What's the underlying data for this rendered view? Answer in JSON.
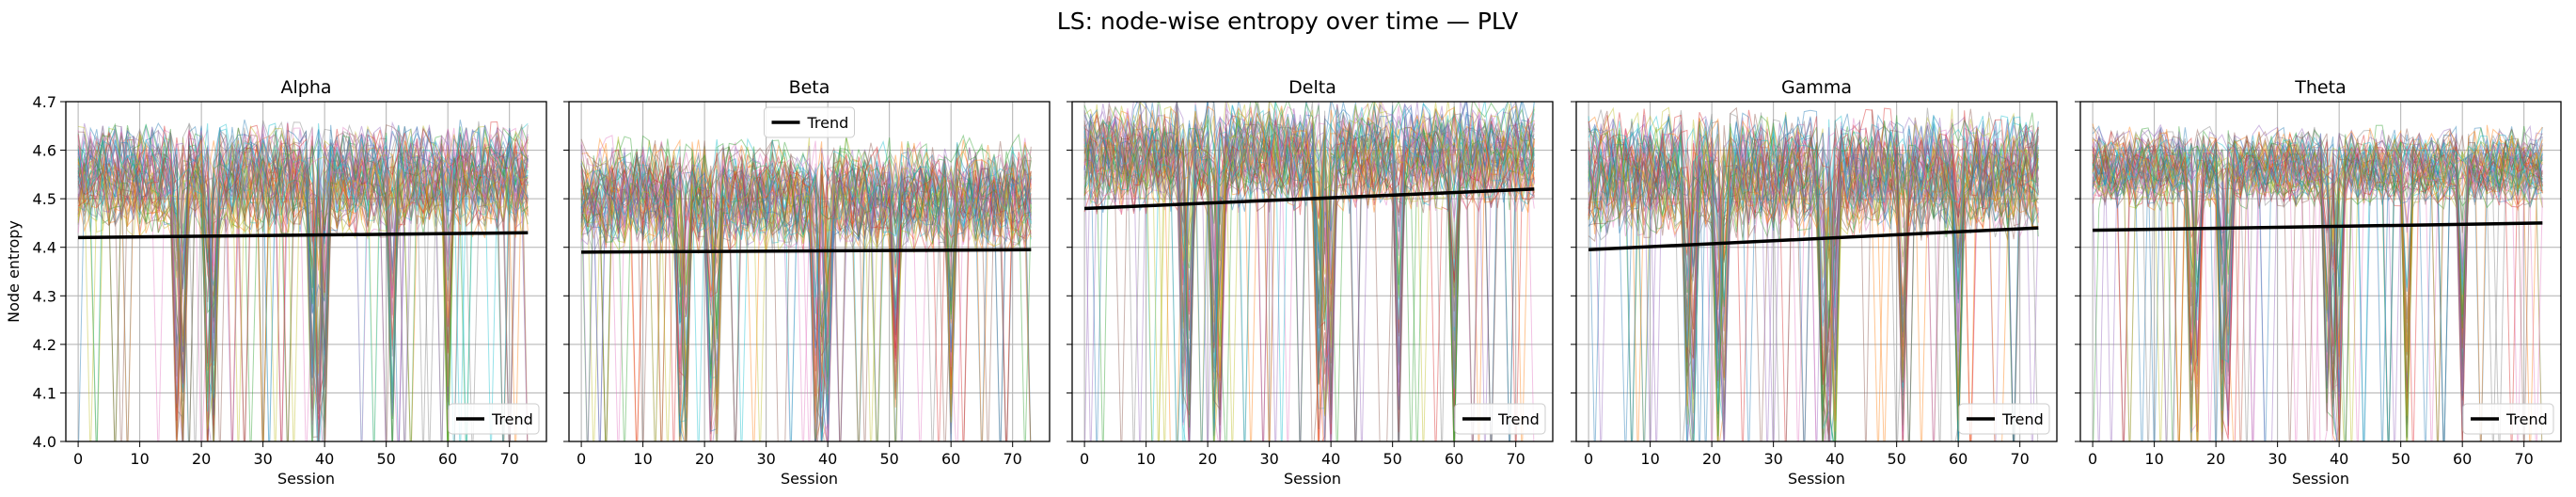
{
  "figure": {
    "title": "LS: node-wise entropy over time — PLV"
  },
  "chart_data": [
    {
      "type": "line",
      "title": "Alpha",
      "xlabel": "Session",
      "ylabel": "Node entropy",
      "xlim": [
        -2,
        76
      ],
      "ylim": [
        4.0,
        4.7
      ],
      "xticks": [
        0,
        10,
        20,
        30,
        40,
        50,
        60,
        70
      ],
      "yticks": [
        4.0,
        4.1,
        4.2,
        4.3,
        4.4,
        4.5,
        4.6,
        4.7
      ],
      "grid": true,
      "legend": {
        "entries": [
          "Trend"
        ],
        "placement": "lower-right"
      },
      "node_series": {
        "count": 60,
        "session_range": [
          0,
          73
        ],
        "typical_range": [
          4.45,
          4.63
        ],
        "dips_at_sessions": [
          16,
          17,
          21,
          22,
          38,
          39,
          40,
          51,
          60
        ]
      },
      "trend": {
        "name": "Trend",
        "x": [
          0,
          73
        ],
        "y": [
          4.42,
          4.43
        ]
      }
    },
    {
      "type": "line",
      "title": "Beta",
      "xlabel": "Session",
      "ylabel": "",
      "xlim": [
        -2,
        76
      ],
      "ylim": [
        4.0,
        4.7
      ],
      "xticks": [
        0,
        10,
        20,
        30,
        40,
        50,
        60,
        70
      ],
      "yticks": [
        4.0,
        4.1,
        4.2,
        4.3,
        4.4,
        4.5,
        4.6,
        4.7
      ],
      "grid": true,
      "legend": {
        "entries": [
          "Trend"
        ],
        "placement": "upper-center"
      },
      "node_series": {
        "count": 60,
        "session_range": [
          0,
          73
        ],
        "typical_range": [
          4.42,
          4.6
        ],
        "dips_at_sessions": [
          16,
          17,
          21,
          22,
          38,
          39,
          40,
          51,
          60
        ]
      },
      "trend": {
        "name": "Trend",
        "x": [
          0,
          73
        ],
        "y": [
          4.39,
          4.395
        ]
      }
    },
    {
      "type": "line",
      "title": "Delta",
      "xlabel": "Session",
      "ylabel": "",
      "xlim": [
        -2,
        76
      ],
      "ylim": [
        4.0,
        4.7
      ],
      "xticks": [
        0,
        10,
        20,
        30,
        40,
        50,
        60,
        70
      ],
      "yticks": [
        4.0,
        4.1,
        4.2,
        4.3,
        4.4,
        4.5,
        4.6,
        4.7
      ],
      "grid": true,
      "legend": {
        "entries": [
          "Trend"
        ],
        "placement": "lower-right"
      },
      "node_series": {
        "count": 60,
        "session_range": [
          0,
          73
        ],
        "typical_range": [
          4.5,
          4.68
        ],
        "dips_at_sessions": [
          16,
          17,
          21,
          22,
          38,
          39,
          40,
          51,
          60
        ]
      },
      "trend": {
        "name": "Trend",
        "x": [
          0,
          73
        ],
        "y": [
          4.48,
          4.52
        ]
      }
    },
    {
      "type": "line",
      "title": "Gamma",
      "xlabel": "Session",
      "ylabel": "",
      "xlim": [
        -2,
        76
      ],
      "ylim": [
        4.0,
        4.7
      ],
      "xticks": [
        0,
        10,
        20,
        30,
        40,
        50,
        60,
        70
      ],
      "yticks": [
        4.0,
        4.1,
        4.2,
        4.3,
        4.4,
        4.5,
        4.6,
        4.7
      ],
      "grid": true,
      "legend": {
        "entries": [
          "Trend"
        ],
        "placement": "lower-right"
      },
      "node_series": {
        "count": 60,
        "session_range": [
          0,
          73
        ],
        "typical_range": [
          4.45,
          4.65
        ],
        "dips_at_sessions": [
          16,
          17,
          21,
          22,
          38,
          39,
          40,
          51,
          60
        ]
      },
      "trend": {
        "name": "Trend",
        "x": [
          0,
          73
        ],
        "y": [
          4.395,
          4.44
        ]
      }
    },
    {
      "type": "line",
      "title": "Theta",
      "xlabel": "Session",
      "ylabel": "",
      "xlim": [
        -2,
        76
      ],
      "ylim": [
        4.0,
        4.7
      ],
      "xticks": [
        0,
        10,
        20,
        30,
        40,
        50,
        60,
        70
      ],
      "yticks": [
        4.0,
        4.1,
        4.2,
        4.3,
        4.4,
        4.5,
        4.6,
        4.7
      ],
      "grid": true,
      "legend": {
        "entries": [
          "Trend"
        ],
        "placement": "lower-right"
      },
      "node_series": {
        "count": 60,
        "session_range": [
          0,
          73
        ],
        "typical_range": [
          4.5,
          4.63
        ],
        "dips_at_sessions": [
          16,
          17,
          21,
          22,
          38,
          39,
          40,
          51,
          60
        ]
      },
      "trend": {
        "name": "Trend",
        "x": [
          0,
          73
        ],
        "y": [
          4.435,
          4.45
        ]
      }
    }
  ],
  "colors": {
    "trend": "#000000",
    "grid": "#b0b0b0",
    "palette": [
      "#1f77b4",
      "#ff7f0e",
      "#2ca02c",
      "#d62728",
      "#9467bd",
      "#8c564b",
      "#e377c2",
      "#7f7f7f",
      "#bcbd22",
      "#17becf"
    ]
  }
}
